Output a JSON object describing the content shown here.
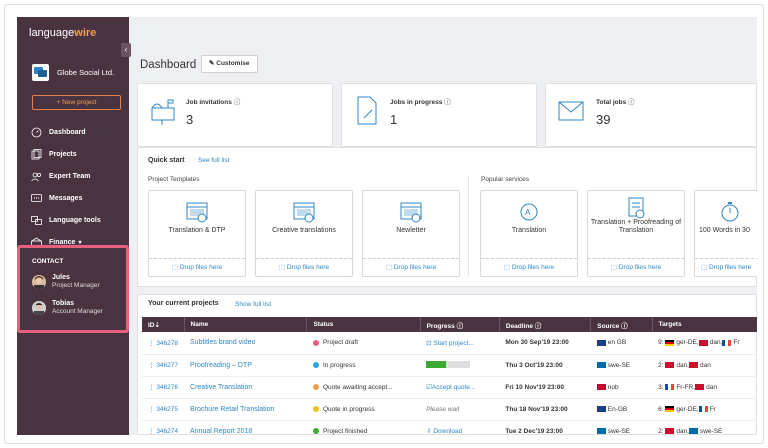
{
  "app": {
    "logo_light": "language",
    "logo_bold": "wire",
    "org_name": "Globe Social Ltd.",
    "new_project": "+ New project",
    "nav": [
      {
        "label": "Dashboard",
        "icon": "gauge-icon"
      },
      {
        "label": "Projects",
        "icon": "projects-icon"
      },
      {
        "label": "Expert Team",
        "icon": "team-icon"
      },
      {
        "label": "Messages",
        "icon": "messages-icon"
      },
      {
        "label": "Language tools",
        "icon": "language-tools-icon"
      },
      {
        "label": "Finance",
        "icon": "finance-icon"
      }
    ],
    "contact": {
      "title": "CONTACT",
      "people": [
        {
          "name": "Jules",
          "role": "Project Manager"
        },
        {
          "name": "Tobias",
          "role": "Account Manager"
        }
      ]
    }
  },
  "dashboard": {
    "title": "Dashboard",
    "customise": "Customise",
    "stats": [
      {
        "label": "Job invitations",
        "value": "3"
      },
      {
        "label": "Jobs in progress",
        "value": "1"
      },
      {
        "label": "Total jobs",
        "value": "39"
      }
    ]
  },
  "quick_start": {
    "title": "Quick start",
    "link": "See full list",
    "templates_label": "Project Templates",
    "services_label": "Popular services",
    "drop_label": "Drop files here",
    "cards": [
      {
        "label": "Translation & DTP"
      },
      {
        "label": "Creative translations"
      },
      {
        "label": "Newletter"
      },
      {
        "label": "Translation"
      },
      {
        "label": "Translation + Proofreading of Translation"
      },
      {
        "label": "100 Words in 30"
      }
    ]
  },
  "projects": {
    "title": "Your current projects",
    "link": "Show full list",
    "columns": [
      "ID",
      "Name",
      "Status",
      "Progress",
      "Deadline",
      "Source",
      "Targets"
    ],
    "rows": [
      {
        "id": "346278",
        "name": "Subtitles brand video",
        "status": "Project draft",
        "status_color": "#e8607f",
        "progress": "Start project...",
        "deadline": "Mon 30 Sep'19 23:00",
        "source": "en GB",
        "targets": "9:",
        "target_langs": [
          "ger-DE,",
          "dan,",
          "Fr"
        ]
      },
      {
        "id": "346277",
        "name": "Proofreading – DTP",
        "status": "In progress",
        "status_color": "#2fa4d8",
        "progress": "",
        "progress_value": 0.45,
        "deadline": "Thu 3 Oct'19 23:00",
        "source": "swe-SE",
        "targets": "2:",
        "target_langs": [
          "dan,",
          "dan"
        ]
      },
      {
        "id": "346276",
        "name": "Creative Translation",
        "status": "Quote awaiting accept...",
        "status_color": "#f0a04b",
        "progress": "Accept quote...",
        "deadline": "Fri 10 Nov'19 23:00",
        "source": "nob",
        "targets": "3:",
        "target_langs": [
          "Fr-FR,",
          "dan"
        ]
      },
      {
        "id": "346275",
        "name": "Brochure Retail Translation",
        "status": "Quote in progress",
        "status_color": "#f0c419",
        "progress": "Please wait",
        "deadline": "Thu 18 Nov'19 23:00",
        "source": "En-GB",
        "targets": "6:",
        "target_langs": [
          "ger-DE,",
          "Fr"
        ]
      },
      {
        "id": "346274",
        "name": "Annual Report 2018",
        "status": "Project finished",
        "status_color": "#3aaa35",
        "progress": "Download",
        "deadline": "Tue 2 Dec'19 23:00",
        "source": "swe-SE",
        "targets": "2:",
        "target_langs": [
          "dan,",
          "swe-SE"
        ]
      }
    ]
  }
}
